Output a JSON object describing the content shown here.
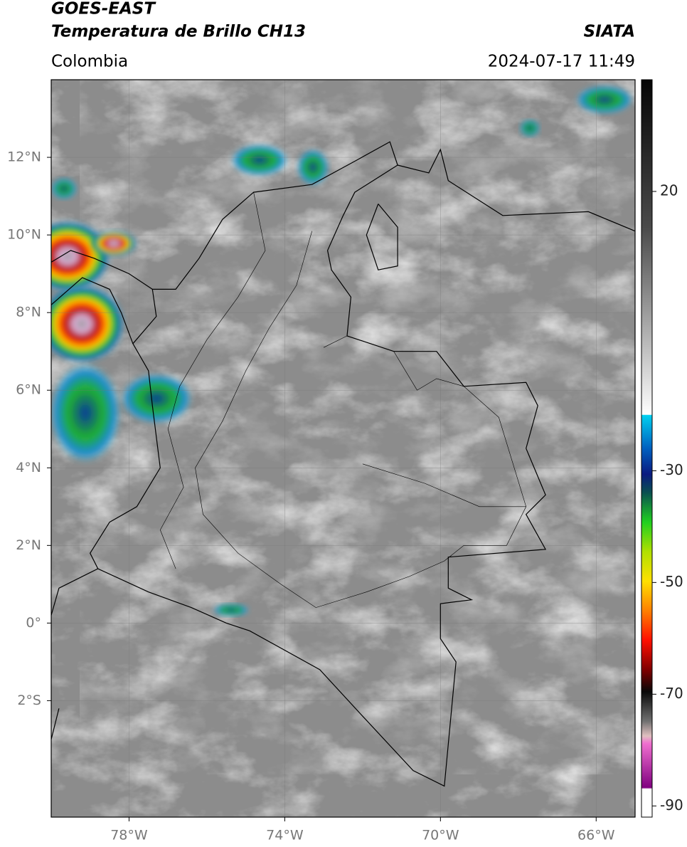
{
  "header": {
    "title": "GOES-EAST",
    "subtitle": "Temperatura de Brillo CH13",
    "source": "SIATA",
    "region": "Colombia",
    "datetime": "2024-07-17 11:49"
  },
  "map": {
    "xlim": [
      -80,
      -65
    ],
    "ylim": [
      -5,
      14
    ],
    "xticks": [
      {
        "value": -78,
        "label": "78°W"
      },
      {
        "value": -74,
        "label": "74°W"
      },
      {
        "value": -70,
        "label": "70°W"
      },
      {
        "value": -66,
        "label": "66°W"
      }
    ],
    "yticks": [
      {
        "value": 12,
        "label": "12°N"
      },
      {
        "value": 10,
        "label": "10°N"
      },
      {
        "value": 8,
        "label": "8°N"
      },
      {
        "value": 6,
        "label": "6°N"
      },
      {
        "value": 4,
        "label": "4°N"
      },
      {
        "value": 2,
        "label": "2°N"
      },
      {
        "value": 0,
        "label": "0°"
      },
      {
        "value": -2,
        "label": "2°S"
      }
    ]
  },
  "colorbar": {
    "lim": [
      -92,
      40
    ],
    "ticks": [
      20,
      -30,
      -50,
      -70,
      -90
    ]
  }
}
